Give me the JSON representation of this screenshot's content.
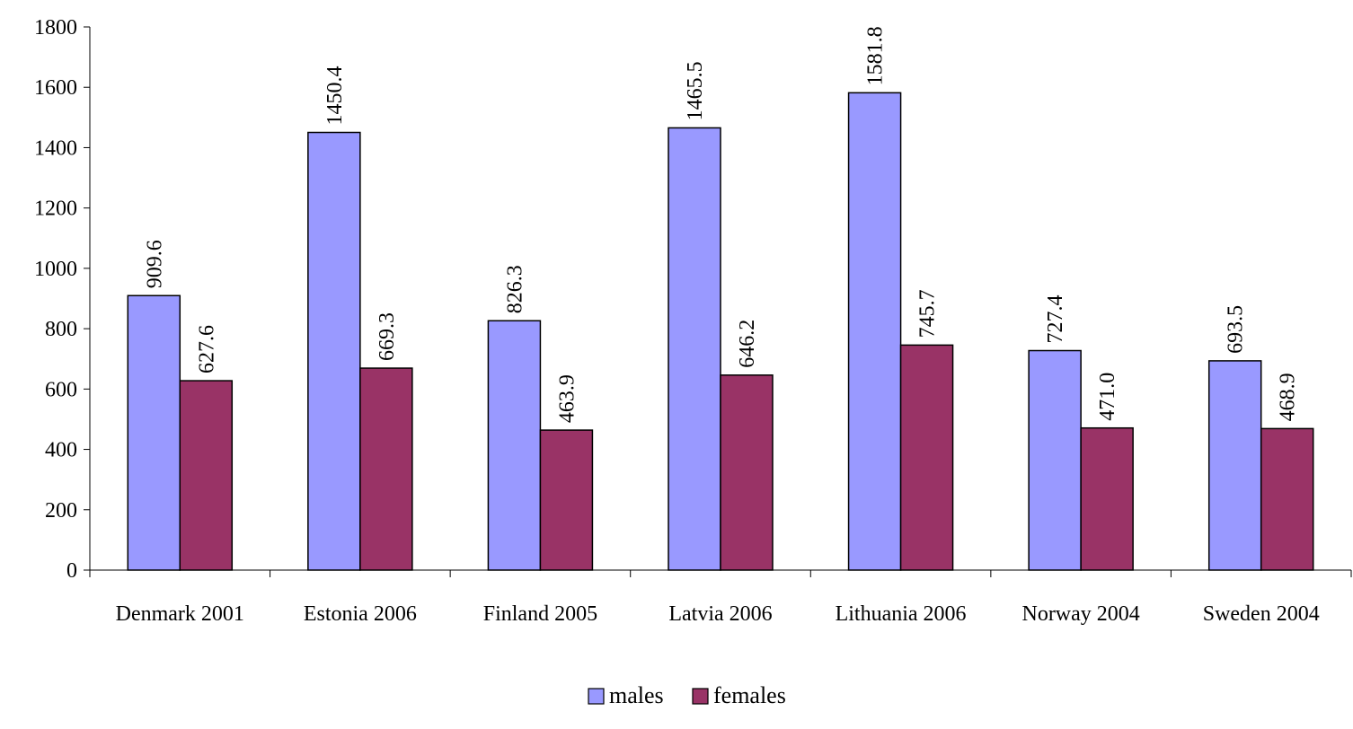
{
  "chart_data": {
    "type": "bar",
    "categories": [
      "Denmark 2001",
      "Estonia 2006",
      "Finland 2005",
      "Latvia 2006",
      "Lithuania 2006",
      "Norway 2004",
      "Sweden 2004"
    ],
    "series": [
      {
        "name": "males",
        "color": "#9999ff",
        "values": [
          909.6,
          1450.4,
          826.3,
          1465.5,
          1581.8,
          727.4,
          693.5
        ],
        "labels": [
          "909.6",
          "1450.4",
          "826.3",
          "1465.5",
          "1581.8",
          "727.4",
          "693.5"
        ]
      },
      {
        "name": "females",
        "color": "#993366",
        "values": [
          627.6,
          669.3,
          463.9,
          646.2,
          745.7,
          471.0,
          468.9
        ],
        "labels": [
          "627.6",
          "669.3",
          "463.9",
          "646.2",
          "745.7",
          "471.0",
          "468.9"
        ]
      }
    ],
    "ylim": [
      0,
      1800
    ],
    "yticks": [
      0,
      200,
      400,
      600,
      800,
      1000,
      1200,
      1400,
      1600,
      1800
    ],
    "grid": false,
    "legend_position": "bottom-center",
    "data_label_orientation": "vertical"
  }
}
